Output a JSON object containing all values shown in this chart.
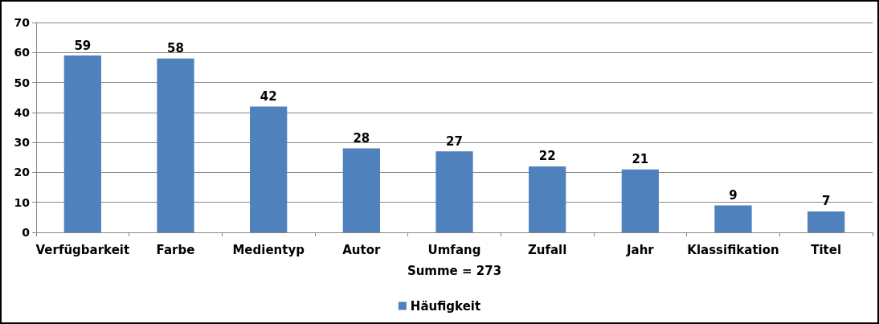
{
  "chart_data": {
    "type": "bar",
    "xlabel": "Summe = 273",
    "categories": [
      "Verfügbarkeit",
      "Farbe",
      "Medientyp",
      "Autor",
      "Umfang",
      "Zufall",
      "Jahr",
      "Klassifikation",
      "Titel"
    ],
    "series": [
      {
        "name": "Häufigkeit",
        "color": "#4f81bd",
        "values": [
          59,
          58,
          42,
          28,
          27,
          22,
          21,
          9,
          7
        ]
      }
    ],
    "ylim": [
      0,
      70
    ],
    "yticks": [
      0,
      10,
      20,
      30,
      40,
      50,
      60,
      70
    ],
    "grid": "y",
    "legend": "bottom",
    "data_labels": true
  }
}
